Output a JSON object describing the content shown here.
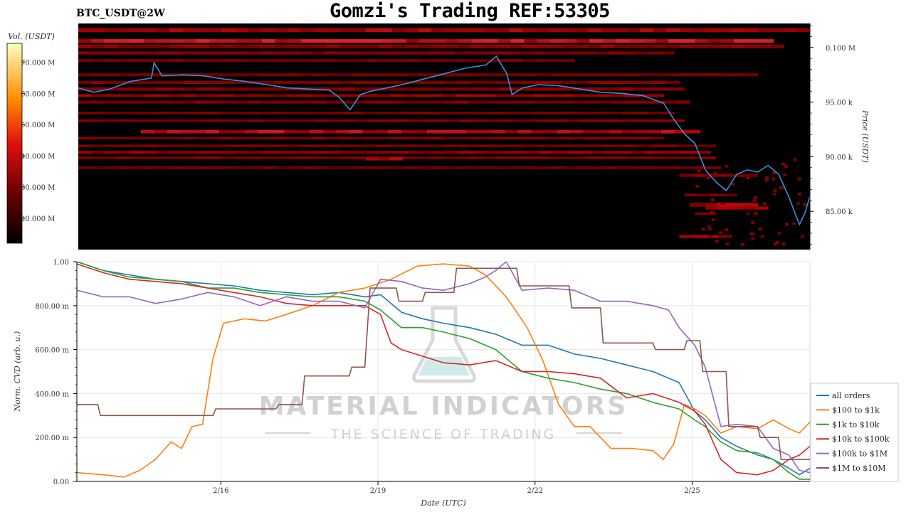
{
  "header": {
    "ticker": "BTC_USDT@2W",
    "title": "Gomzi's Trading REF:53305"
  },
  "colors": {
    "heatmap_bg": "#000000",
    "price_line": "#3a8fd8",
    "heat_low": "#5a0000",
    "heat_mid": "#e01010",
    "heat_high": "#ffffa0"
  },
  "watermark": {
    "line1": "MATERIAL INDICATORS",
    "line2": "THE SCIENCE OF TRADING",
    "icon": "flask-icon"
  },
  "chart_data": [
    {
      "type": "heatmap",
      "ylabel": "Price (USDT)",
      "colorbar_label": "Vol. (USDT)",
      "colorbar_ticks": [
        "20.000 M",
        "30.000 M",
        "40.000 M",
        "50.000 M",
        "60.000 M",
        "70.000 M"
      ],
      "colorbar_range": [
        12000000,
        76000000
      ],
      "ylim": [
        81500,
        102200
      ],
      "y_ticks": [
        {
          "value": 100000,
          "label": "0.100 M"
        },
        {
          "value": 95000,
          "label": "95.00 k"
        },
        {
          "value": 90000,
          "label": "90.00 k"
        },
        {
          "value": 85000,
          "label": "85.00 k"
        }
      ],
      "xlim": [
        0,
        14
      ],
      "price_series": {
        "x": [
          0,
          0.3,
          0.6,
          1.0,
          1.4,
          1.45,
          1.6,
          2.0,
          2.4,
          2.8,
          3.2,
          3.6,
          4.0,
          4.4,
          4.8,
          5.0,
          5.2,
          5.4,
          5.6,
          5.9,
          6.2,
          6.6,
          7.0,
          7.4,
          7.8,
          8.0,
          8.2,
          8.3,
          8.5,
          8.8,
          9.2,
          9.6,
          10.0,
          10.4,
          10.8,
          11.2,
          11.4,
          11.6,
          11.8,
          12.0,
          12.2,
          12.4,
          12.6,
          12.8,
          13.0,
          13.2,
          13.4,
          13.6,
          13.7,
          13.8,
          13.9,
          14.0
        ],
        "y": [
          96300,
          95900,
          96200,
          96900,
          97200,
          98600,
          97400,
          97500,
          97400,
          97100,
          96900,
          96600,
          96300,
          96200,
          96100,
          95400,
          94300,
          95700,
          96000,
          96300,
          96600,
          97100,
          97600,
          98100,
          98400,
          99200,
          97600,
          95700,
          96300,
          96600,
          96500,
          96200,
          95900,
          95800,
          95600,
          94900,
          93400,
          92100,
          91200,
          88800,
          87700,
          86900,
          88400,
          88800,
          88600,
          89200,
          88400,
          86300,
          85000,
          83800,
          84800,
          86400
        ]
      }
    },
    {
      "type": "line",
      "xlabel": "Date (UTC)",
      "ylabel": "Norm. CVD (arb. u.)",
      "ylim": [
        0,
        1
      ],
      "xlim": [
        0,
        14
      ],
      "x_ticks": [
        {
          "value": 2.75,
          "label": "2/16"
        },
        {
          "value": 5.75,
          "label": "2/19"
        },
        {
          "value": 8.75,
          "label": "2/22"
        },
        {
          "value": 11.75,
          "label": "2/25"
        }
      ],
      "y_ticks": [
        {
          "value": 0,
          "label": "0.00"
        },
        {
          "value": 0.2,
          "label": "200.00 m"
        },
        {
          "value": 0.4,
          "label": "400.00 m"
        },
        {
          "value": 0.6,
          "label": "600.00 m"
        },
        {
          "value": 0.8,
          "label": "800.00 m"
        },
        {
          "value": 1.0,
          "label": "1.00"
        }
      ],
      "grid": true,
      "legend_position": "right",
      "series": [
        {
          "name": "all orders",
          "color": "#1f77b4",
          "x": [
            0,
            0.5,
            1.0,
            1.5,
            2.0,
            2.5,
            3.0,
            3.5,
            4.0,
            4.5,
            5.0,
            5.5,
            5.8,
            6.2,
            6.6,
            7.0,
            7.5,
            8.0,
            8.5,
            9.0,
            9.5,
            10.0,
            10.5,
            11.0,
            11.5,
            11.8,
            12.0,
            12.3,
            12.6,
            13.0,
            13.3,
            13.6,
            13.8,
            14.0
          ],
          "y": [
            1.0,
            0.96,
            0.94,
            0.92,
            0.91,
            0.9,
            0.89,
            0.87,
            0.86,
            0.85,
            0.86,
            0.84,
            0.85,
            0.77,
            0.74,
            0.72,
            0.7,
            0.67,
            0.62,
            0.62,
            0.58,
            0.56,
            0.53,
            0.5,
            0.45,
            0.32,
            0.28,
            0.2,
            0.16,
            0.12,
            0.1,
            0.06,
            0.03,
            0.06
          ]
        },
        {
          "name": "$100 to $1k",
          "color": "#ff7f0e",
          "x": [
            0,
            0.5,
            0.9,
            1.2,
            1.5,
            1.8,
            2.0,
            2.2,
            2.4,
            2.6,
            2.8,
            3.2,
            3.6,
            4.0,
            4.5,
            5.0,
            5.5,
            6.0,
            6.5,
            7.0,
            7.5,
            7.8,
            8.2,
            8.6,
            8.9,
            9.2,
            9.5,
            9.8,
            10.2,
            10.6,
            11.0,
            11.2,
            11.4,
            11.6,
            11.8,
            12.0,
            12.3,
            12.6,
            13.0,
            13.3,
            13.6,
            13.8,
            14.0
          ],
          "y": [
            0.04,
            0.03,
            0.02,
            0.05,
            0.1,
            0.18,
            0.15,
            0.25,
            0.26,
            0.56,
            0.72,
            0.74,
            0.73,
            0.76,
            0.8,
            0.86,
            0.88,
            0.92,
            0.98,
            0.99,
            0.98,
            0.94,
            0.84,
            0.7,
            0.55,
            0.35,
            0.25,
            0.25,
            0.15,
            0.15,
            0.14,
            0.1,
            0.17,
            0.35,
            0.33,
            0.3,
            0.22,
            0.25,
            0.24,
            0.28,
            0.24,
            0.22,
            0.27
          ]
        },
        {
          "name": "$1k to $10k",
          "color": "#2ca02c",
          "x": [
            0,
            0.5,
            1.0,
            1.5,
            2.0,
            2.5,
            3.0,
            3.5,
            4.0,
            4.5,
            5.0,
            5.5,
            5.8,
            6.2,
            6.6,
            7.0,
            7.5,
            8.0,
            8.5,
            9.0,
            9.5,
            10.0,
            10.5,
            11.0,
            11.5,
            11.8,
            12.0,
            12.3,
            12.6,
            13.0,
            13.3,
            13.6,
            13.8,
            14.0
          ],
          "y": [
            1.0,
            0.96,
            0.93,
            0.92,
            0.91,
            0.88,
            0.88,
            0.86,
            0.85,
            0.84,
            0.84,
            0.82,
            0.78,
            0.7,
            0.7,
            0.68,
            0.65,
            0.6,
            0.5,
            0.47,
            0.45,
            0.42,
            0.4,
            0.36,
            0.33,
            0.28,
            0.25,
            0.18,
            0.14,
            0.13,
            0.1,
            0.04,
            0.01,
            0.01
          ]
        },
        {
          "name": "$10k to $100k",
          "color": "#d62728",
          "x": [
            0,
            0.5,
            1.0,
            1.5,
            2.0,
            2.5,
            3.0,
            3.5,
            4.0,
            4.5,
            5.0,
            5.5,
            5.8,
            6.0,
            6.2,
            6.6,
            7.0,
            7.5,
            8.0,
            8.5,
            9.0,
            9.5,
            10.0,
            10.5,
            11.0,
            11.5,
            11.8,
            12.0,
            12.3,
            12.6,
            13.0,
            13.3,
            13.6,
            13.8,
            14.0
          ],
          "y": [
            0.99,
            0.95,
            0.92,
            0.91,
            0.9,
            0.88,
            0.86,
            0.84,
            0.81,
            0.8,
            0.8,
            0.8,
            0.76,
            0.63,
            0.6,
            0.57,
            0.54,
            0.53,
            0.55,
            0.5,
            0.5,
            0.49,
            0.47,
            0.38,
            0.4,
            0.36,
            0.32,
            0.26,
            0.1,
            0.04,
            0.03,
            0.05,
            0.1,
            0.12,
            0.16
          ]
        },
        {
          "name": "$100k to $1M",
          "color": "#9467bd",
          "x": [
            0,
            0.5,
            1.0,
            1.5,
            2.0,
            2.5,
            3.0,
            3.5,
            4.0,
            4.5,
            5.0,
            5.5,
            5.8,
            6.2,
            6.6,
            7.0,
            7.5,
            7.8,
            8.0,
            8.2,
            8.5,
            9.0,
            9.5,
            10.0,
            10.5,
            11.0,
            11.3,
            11.5,
            11.8,
            12.0,
            12.3,
            12.6,
            13.0,
            13.3,
            13.6,
            13.8,
            14.0
          ],
          "y": [
            0.87,
            0.84,
            0.84,
            0.81,
            0.83,
            0.86,
            0.84,
            0.8,
            0.84,
            0.82,
            0.82,
            0.79,
            0.92,
            0.91,
            0.88,
            0.87,
            0.9,
            0.93,
            0.96,
            1.0,
            0.87,
            0.88,
            0.87,
            0.82,
            0.82,
            0.8,
            0.78,
            0.7,
            0.62,
            0.52,
            0.25,
            0.26,
            0.25,
            0.15,
            0.12,
            0.05,
            0.04
          ]
        },
        {
          "name": "$1M to $10M",
          "color": "#8c564b",
          "x": [
            0,
            0.4,
            0.45,
            1.8,
            1.85,
            2.6,
            2.65,
            3.8,
            3.85,
            4.3,
            4.35,
            5.2,
            5.25,
            5.5,
            5.6,
            5.8,
            6.1,
            6.15,
            6.6,
            6.65,
            7.2,
            7.25,
            8.4,
            8.45,
            9.4,
            9.45,
            10.0,
            10.05,
            11.0,
            11.05,
            11.6,
            11.65,
            11.9,
            11.95,
            12.4,
            12.45,
            13.0,
            13.05,
            13.4,
            13.45,
            14.0
          ],
          "y": [
            0.35,
            0.35,
            0.3,
            0.3,
            0.3,
            0.3,
            0.33,
            0.33,
            0.35,
            0.35,
            0.48,
            0.48,
            0.52,
            0.52,
            0.88,
            0.88,
            0.88,
            0.82,
            0.82,
            0.86,
            0.86,
            0.97,
            0.97,
            0.89,
            0.89,
            0.79,
            0.79,
            0.63,
            0.63,
            0.6,
            0.6,
            0.64,
            0.64,
            0.5,
            0.5,
            0.25,
            0.25,
            0.2,
            0.2,
            0.1,
            0.1
          ]
        }
      ]
    }
  ]
}
